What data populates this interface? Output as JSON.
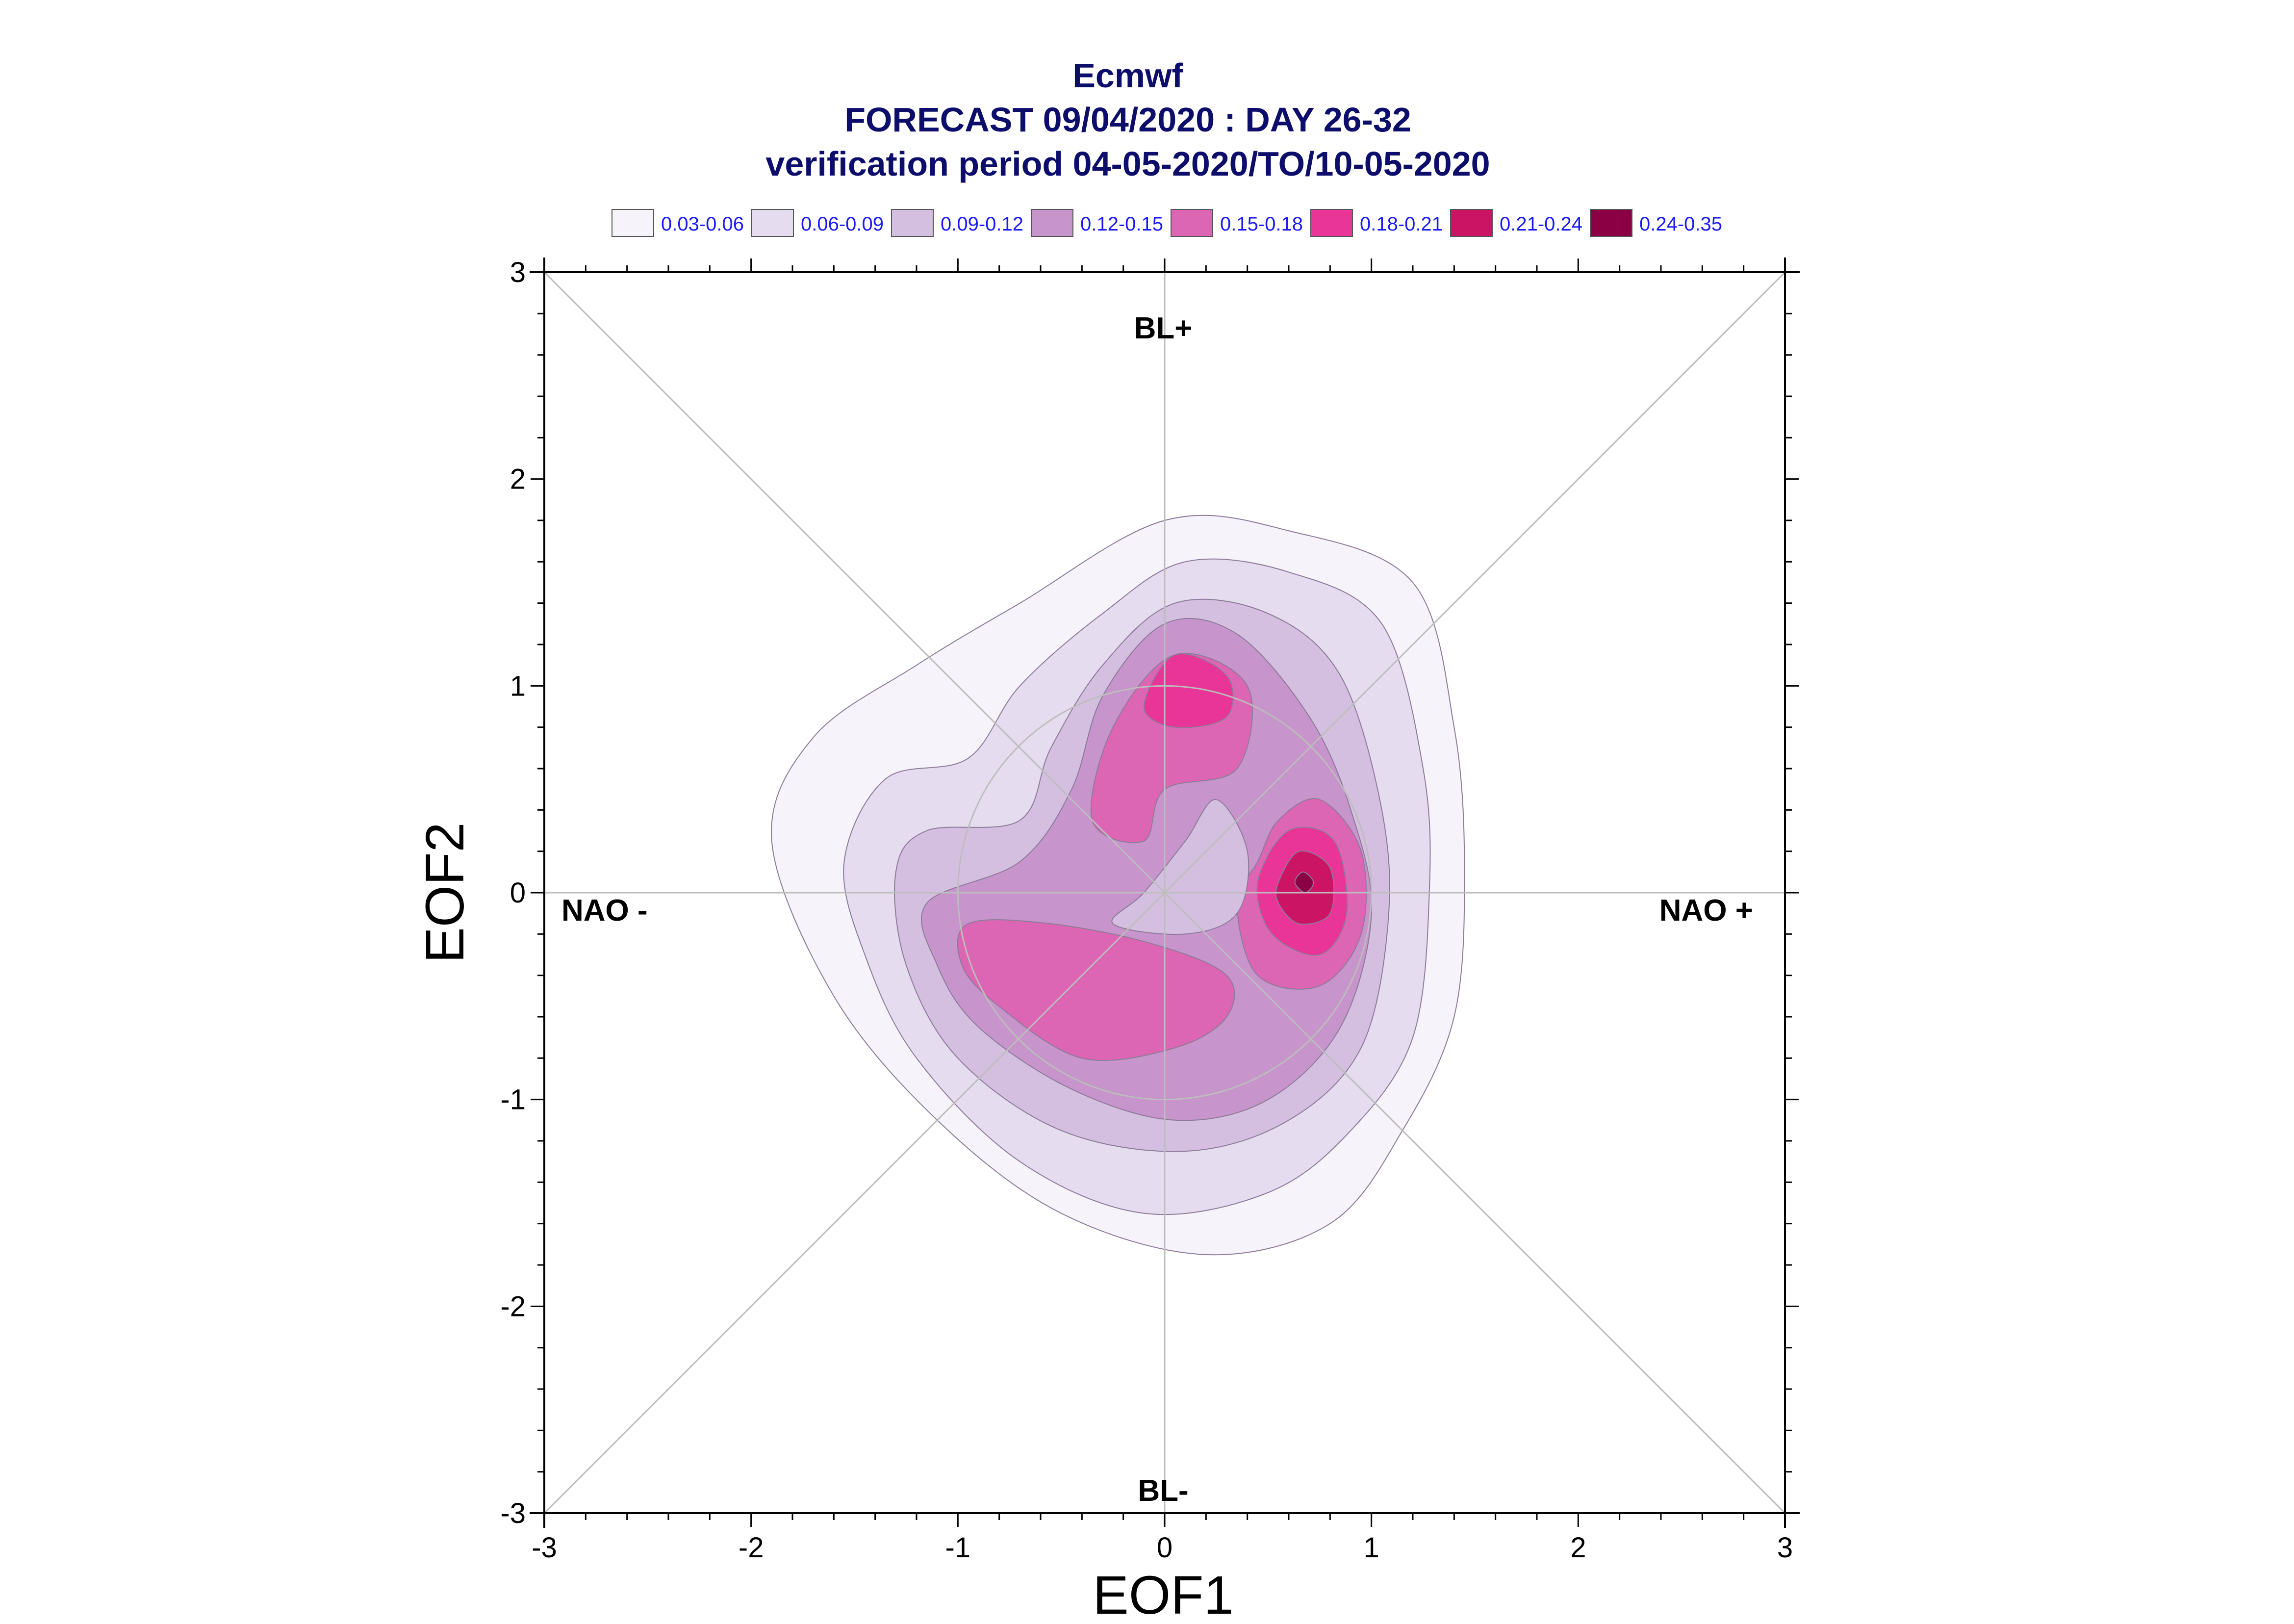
{
  "chart_data": {
    "type": "contour",
    "title_lines": [
      "Ecmwf",
      "FORECAST 09/04/2020 : DAY 26-32",
      "verification period 04-05-2020/TO/10-05-2020"
    ],
    "xlabel": "EOF1",
    "ylabel": "EOF2",
    "xlim": [
      -3,
      3
    ],
    "ylim": [
      -3,
      3
    ],
    "x_ticks": [
      -3,
      -2,
      -1,
      0,
      1,
      2,
      3
    ],
    "y_ticks": [
      -3,
      -2,
      -1,
      0,
      1,
      2,
      3
    ],
    "x_tick_labels": [
      "-3",
      "-2",
      "-1",
      "0",
      "1",
      "2",
      "3"
    ],
    "y_tick_labels": [
      "-3",
      "-2",
      "-1",
      "0",
      "1",
      "2",
      "3"
    ],
    "regime_labels": {
      "top": "BL+",
      "bottom": "BL-",
      "left": "NAO -",
      "right": "NAO +"
    },
    "legend_position": "top",
    "levels": [
      {
        "label": "0.03-0.06",
        "color": "#f6f3fa"
      },
      {
        "label": "0.06-0.09",
        "color": "#e6dcef"
      },
      {
        "label": "0.09-0.12",
        "color": "#d5bfe0"
      },
      {
        "label": "0.12-0.15",
        "color": "#c794cb"
      },
      {
        "label": "0.15-0.18",
        "color": "#dd66b4"
      },
      {
        "label": "0.18-0.21",
        "color": "#e93597"
      },
      {
        "label": "0.21-0.24",
        "color": "#cc1464"
      },
      {
        "label": "0.24-0.35",
        "color": "#8b0045"
      }
    ],
    "contours": [
      {
        "level": 0,
        "points": [
          [
            -1.9,
            0.25
          ],
          [
            -1.7,
            0.75
          ],
          [
            -1.2,
            1.1
          ],
          [
            -0.7,
            1.4
          ],
          [
            0,
            1.8
          ],
          [
            0.6,
            1.75
          ],
          [
            1.2,
            1.5
          ],
          [
            1.4,
            0.8
          ],
          [
            1.45,
            0.1
          ],
          [
            1.4,
            -0.6
          ],
          [
            1.15,
            -1.15
          ],
          [
            0.8,
            -1.6
          ],
          [
            0.2,
            -1.75
          ],
          [
            -0.5,
            -1.55
          ],
          [
            -1.1,
            -1.1
          ],
          [
            -1.6,
            -0.5
          ]
        ]
      },
      {
        "level": 1,
        "points": [
          [
            -1.55,
            0.15
          ],
          [
            -1.35,
            0.55
          ],
          [
            -0.95,
            0.65
          ],
          [
            -0.7,
            1.0
          ],
          [
            -0.3,
            1.35
          ],
          [
            0.1,
            1.6
          ],
          [
            0.6,
            1.55
          ],
          [
            1.05,
            1.3
          ],
          [
            1.25,
            0.6
          ],
          [
            1.28,
            0
          ],
          [
            1.2,
            -0.7
          ],
          [
            0.9,
            -1.15
          ],
          [
            0.5,
            -1.45
          ],
          [
            -0.1,
            -1.55
          ],
          [
            -0.7,
            -1.3
          ],
          [
            -1.2,
            -0.8
          ],
          [
            -1.45,
            -0.3
          ]
        ]
      },
      {
        "level": 2,
        "points": [
          [
            -1.3,
            0.1
          ],
          [
            -1.15,
            0.3
          ],
          [
            -0.7,
            0.35
          ],
          [
            -0.55,
            0.7
          ],
          [
            -0.3,
            1.1
          ],
          [
            0.05,
            1.4
          ],
          [
            0.5,
            1.35
          ],
          [
            0.85,
            1.05
          ],
          [
            1.05,
            0.4
          ],
          [
            1.08,
            -0.15
          ],
          [
            0.95,
            -0.75
          ],
          [
            0.6,
            -1.1
          ],
          [
            0.1,
            -1.25
          ],
          [
            -0.5,
            -1.15
          ],
          [
            -1.0,
            -0.8
          ],
          [
            -1.25,
            -0.35
          ]
        ]
      },
      {
        "level": 3,
        "points": [
          [
            -1.15,
            -0.05
          ],
          [
            -0.7,
            0.15
          ],
          [
            -0.45,
            0.5
          ],
          [
            -0.3,
            0.95
          ],
          [
            0.0,
            1.3
          ],
          [
            0.35,
            1.25
          ],
          [
            0.7,
            0.85
          ],
          [
            0.9,
            0.4
          ],
          [
            1.0,
            -0.1
          ],
          [
            0.85,
            -0.65
          ],
          [
            0.5,
            -1.0
          ],
          [
            0.05,
            -1.1
          ],
          [
            -0.45,
            -0.95
          ],
          [
            -0.9,
            -0.65
          ],
          [
            -1.1,
            -0.35
          ]
        ]
      },
      {
        "level": 4,
        "points": [
          [
            -0.35,
            0.35
          ],
          [
            -0.25,
            0.8
          ],
          [
            0.05,
            1.15
          ],
          [
            0.4,
            1.0
          ],
          [
            0.35,
            0.6
          ],
          [
            0.0,
            0.5
          ],
          [
            -0.1,
            0.25
          ]
        ]
      },
      {
        "level": 4,
        "points": [
          [
            0.45,
            0.15
          ],
          [
            0.55,
            0.35
          ],
          [
            0.75,
            0.45
          ],
          [
            0.95,
            0.2
          ],
          [
            0.95,
            -0.2
          ],
          [
            0.75,
            -0.45
          ],
          [
            0.45,
            -0.4
          ],
          [
            0.35,
            -0.05
          ]
        ]
      },
      {
        "level": 4,
        "points": [
          [
            -0.95,
            -0.15
          ],
          [
            -0.55,
            -0.15
          ],
          [
            -0.05,
            -0.25
          ],
          [
            0.3,
            -0.4
          ],
          [
            0.3,
            -0.6
          ],
          [
            0.05,
            -0.75
          ],
          [
            -0.4,
            -0.8
          ],
          [
            -0.8,
            -0.55
          ],
          [
            -0.98,
            -0.35
          ]
        ]
      },
      {
        "level": 5,
        "points": [
          [
            -0.1,
            0.9
          ],
          [
            0.05,
            1.15
          ],
          [
            0.3,
            1.05
          ],
          [
            0.3,
            0.85
          ],
          [
            0.05,
            0.8
          ]
        ]
      },
      {
        "level": 5,
        "points": [
          [
            0.45,
            0.05
          ],
          [
            0.6,
            0.3
          ],
          [
            0.82,
            0.25
          ],
          [
            0.88,
            -0.1
          ],
          [
            0.75,
            -0.3
          ],
          [
            0.52,
            -0.2
          ]
        ]
      },
      {
        "level": 6,
        "points": [
          [
            0.55,
            0.05
          ],
          [
            0.65,
            0.2
          ],
          [
            0.8,
            0.12
          ],
          [
            0.8,
            -0.1
          ],
          [
            0.65,
            -0.15
          ],
          [
            0.55,
            -0.05
          ]
        ]
      },
      {
        "level": 7,
        "points": [
          [
            0.63,
            0.05
          ],
          [
            0.67,
            0.1
          ],
          [
            0.72,
            0.05
          ],
          [
            0.68,
            0.0
          ]
        ]
      }
    ],
    "inner_hole": [
      [
        0.25,
        0.45
      ],
      [
        0.1,
        0.25
      ],
      [
        -0.1,
        0.0
      ],
      [
        -0.25,
        -0.15
      ],
      [
        0.1,
        -0.2
      ],
      [
        0.35,
        -0.1
      ],
      [
        0.4,
        0.2
      ]
    ]
  }
}
